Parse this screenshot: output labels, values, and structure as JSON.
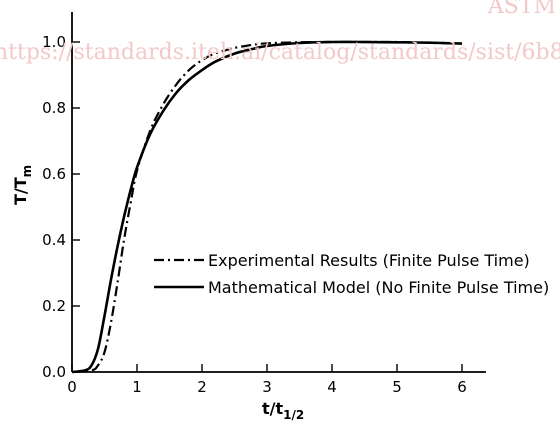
{
  "watermark": {
    "top": "ASTM",
    "url": "https://standards.iteh.ai/catalog/standards/sist/6b8"
  },
  "chart_data": {
    "type": "line",
    "title": "",
    "xlabel": "t/t",
    "xlabel_sub": "1/2",
    "ylabel": "T/T",
    "ylabel_sub": "m",
    "xlim": [
      0,
      6.5
    ],
    "ylim": [
      0,
      1.1
    ],
    "x_ticks": [
      0,
      1,
      2,
      3,
      4,
      5,
      6
    ],
    "x_tick_labels": [
      "0",
      "1",
      "2",
      "3",
      "4",
      "5",
      "6"
    ],
    "y_ticks": [
      0,
      0.2,
      0.4,
      0.6,
      0.8,
      1.0
    ],
    "y_tick_labels": [
      "0.0",
      "0.2",
      "0.4",
      "0.6",
      "0.8",
      "1.0"
    ],
    "grid": false,
    "legend_position": "center-right",
    "series": [
      {
        "name": "Experimental Results (Finite Pulse Time)",
        "style": "dash-dot",
        "color": "#000000",
        "x": [
          0,
          0.3,
          0.4,
          0.5,
          0.6,
          0.7,
          0.8,
          0.9,
          1.0,
          1.2,
          1.4,
          1.6,
          1.8,
          2.0,
          2.2,
          2.5,
          2.8,
          3.0,
          3.5,
          4.0,
          4.5,
          5.0,
          5.5,
          6.0
        ],
        "y": [
          0,
          0.005,
          0.02,
          0.06,
          0.15,
          0.27,
          0.4,
          0.51,
          0.61,
          0.73,
          0.81,
          0.87,
          0.915,
          0.945,
          0.965,
          0.982,
          0.992,
          0.996,
          0.999,
          1.0,
          1.0,
          1.0,
          0.998,
          0.995
        ]
      },
      {
        "name": "Mathematical Model (No Finite Pulse Time)",
        "style": "solid",
        "color": "#000000",
        "x": [
          0,
          0.2,
          0.3,
          0.4,
          0.5,
          0.6,
          0.7,
          0.8,
          0.9,
          1.0,
          1.2,
          1.4,
          1.6,
          1.8,
          2.0,
          2.2,
          2.5,
          2.8,
          3.0,
          3.5,
          4.0,
          4.5,
          5.0,
          5.5,
          6.0
        ],
        "y": [
          0,
          0.005,
          0.02,
          0.07,
          0.17,
          0.28,
          0.38,
          0.47,
          0.55,
          0.62,
          0.72,
          0.79,
          0.845,
          0.885,
          0.915,
          0.94,
          0.965,
          0.98,
          0.988,
          0.997,
          1.0,
          1.0,
          0.999,
          0.998,
          0.995
        ]
      }
    ]
  }
}
